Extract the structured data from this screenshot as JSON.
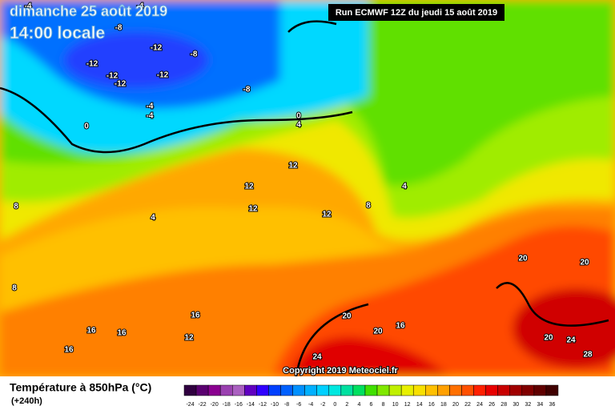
{
  "header": {
    "date": "dimanche 25 août 2019",
    "time": "14:00 locale",
    "run": "Run ECMWF 12Z du jeudi 15 août 2019"
  },
  "map": {
    "contour_labels": [
      "-4",
      "-4",
      "-8",
      "-12",
      "-8",
      "-12",
      "-12",
      "-12",
      "-12",
      "-8",
      "-4",
      "-4",
      "0",
      "0",
      "4",
      "12",
      "12",
      "12",
      "12",
      "8",
      "4",
      "4",
      "8",
      "8",
      "16",
      "16",
      "16",
      "12",
      "16",
      "20",
      "20",
      "16",
      "20",
      "20",
      "20",
      "24",
      "24",
      "28"
    ]
  },
  "copyright": "Copyright 2019 Meteociel.fr",
  "legend": {
    "title": "Température à 850hPa (°C)",
    "lead": "(+240h)",
    "scale": [
      -24,
      -22,
      -20,
      -18,
      -16,
      -14,
      -12,
      -10,
      -8,
      -6,
      -4,
      -2,
      0,
      2,
      4,
      6,
      8,
      10,
      12,
      14,
      16,
      18,
      20,
      22,
      24,
      26,
      28,
      30,
      32,
      34,
      36
    ],
    "colors": [
      "#300040",
      "#5a0070",
      "#8a0090",
      "#9a40b0",
      "#aa60c0",
      "#6000c0",
      "#3000ff",
      "#0040ff",
      "#0060ff",
      "#0090ff",
      "#00b0ff",
      "#00d0ff",
      "#00e8e0",
      "#00e0a0",
      "#00e060",
      "#40e000",
      "#80e800",
      "#c0f000",
      "#e8f000",
      "#f8e000",
      "#ffc000",
      "#ffa000",
      "#ff7000",
      "#ff5000",
      "#ff2000",
      "#e80000",
      "#c80000",
      "#a00000",
      "#800000",
      "#600000",
      "#400000"
    ]
  }
}
